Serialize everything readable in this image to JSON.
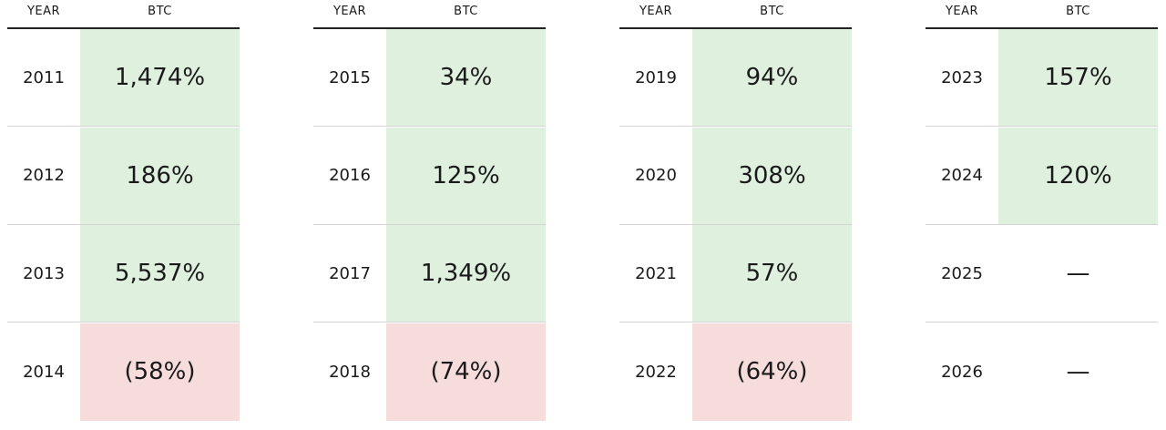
{
  "tables": [
    {
      "headers": [
        "YEAR",
        "BTC"
      ],
      "rows": [
        [
          "2011",
          "1,474%"
        ],
        [
          "2012",
          "186%"
        ],
        [
          "2013",
          "5,537%"
        ],
        [
          "2014",
          "(58%)"
        ]
      ]
    },
    {
      "headers": [
        "YEAR",
        "BTC"
      ],
      "rows": [
        [
          "2015",
          "34%"
        ],
        [
          "2016",
          "125%"
        ],
        [
          "2017",
          "1,349%"
        ],
        [
          "2018",
          "(74%)"
        ]
      ]
    },
    {
      "headers": [
        "YEAR",
        "BTC"
      ],
      "rows": [
        [
          "2019",
          "94%"
        ],
        [
          "2020",
          "308%"
        ],
        [
          "2021",
          "57%"
        ],
        [
          "2022",
          "(64%)"
        ]
      ]
    },
    {
      "headers": [
        "YEAR",
        "BTC"
      ],
      "rows": [
        [
          "2023",
          "157%"
        ],
        [
          "2024",
          "120%"
        ],
        [
          "2025",
          "—"
        ],
        [
          "2026",
          "—"
        ]
      ]
    }
  ]
}
